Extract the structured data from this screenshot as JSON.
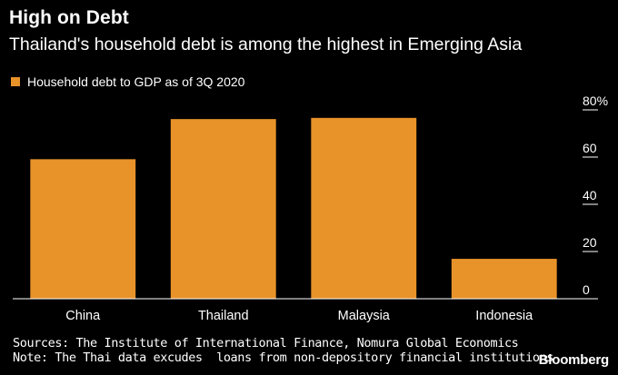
{
  "header": {
    "title": "High on Debt",
    "subtitle": "Thailand's household debt is among the highest in Emerging Asia"
  },
  "legend": {
    "label": "Household debt to GDP as of 3Q 2020"
  },
  "colors": {
    "bar": "#E8922A",
    "background": "#000000",
    "text": "#FFFFFF",
    "axis": "#FFFFFF"
  },
  "chart_data": {
    "type": "bar",
    "categories": [
      "China",
      "Thailand",
      "Malaysia",
      "Indonesia"
    ],
    "series": [
      {
        "name": "Household debt to GDP as of 3Q 2020",
        "values": [
          59.1,
          76.1,
          76.6,
          16.9
        ]
      }
    ],
    "ylim": [
      0,
      80
    ],
    "yticks": [
      0,
      20,
      40,
      60,
      80
    ],
    "ytick_labels": [
      "0",
      "20",
      "40",
      "60",
      "80%"
    ],
    "yaxis_position": "right",
    "title": "High on Debt",
    "xlabel": "",
    "ylabel": ""
  },
  "footer": {
    "source": "Sources: The Institute of International Finance, Nomura Global Economics",
    "note": "Note: The Thai data excudes  loans from non-depository financial institutions",
    "brand": "Bloomberg"
  }
}
